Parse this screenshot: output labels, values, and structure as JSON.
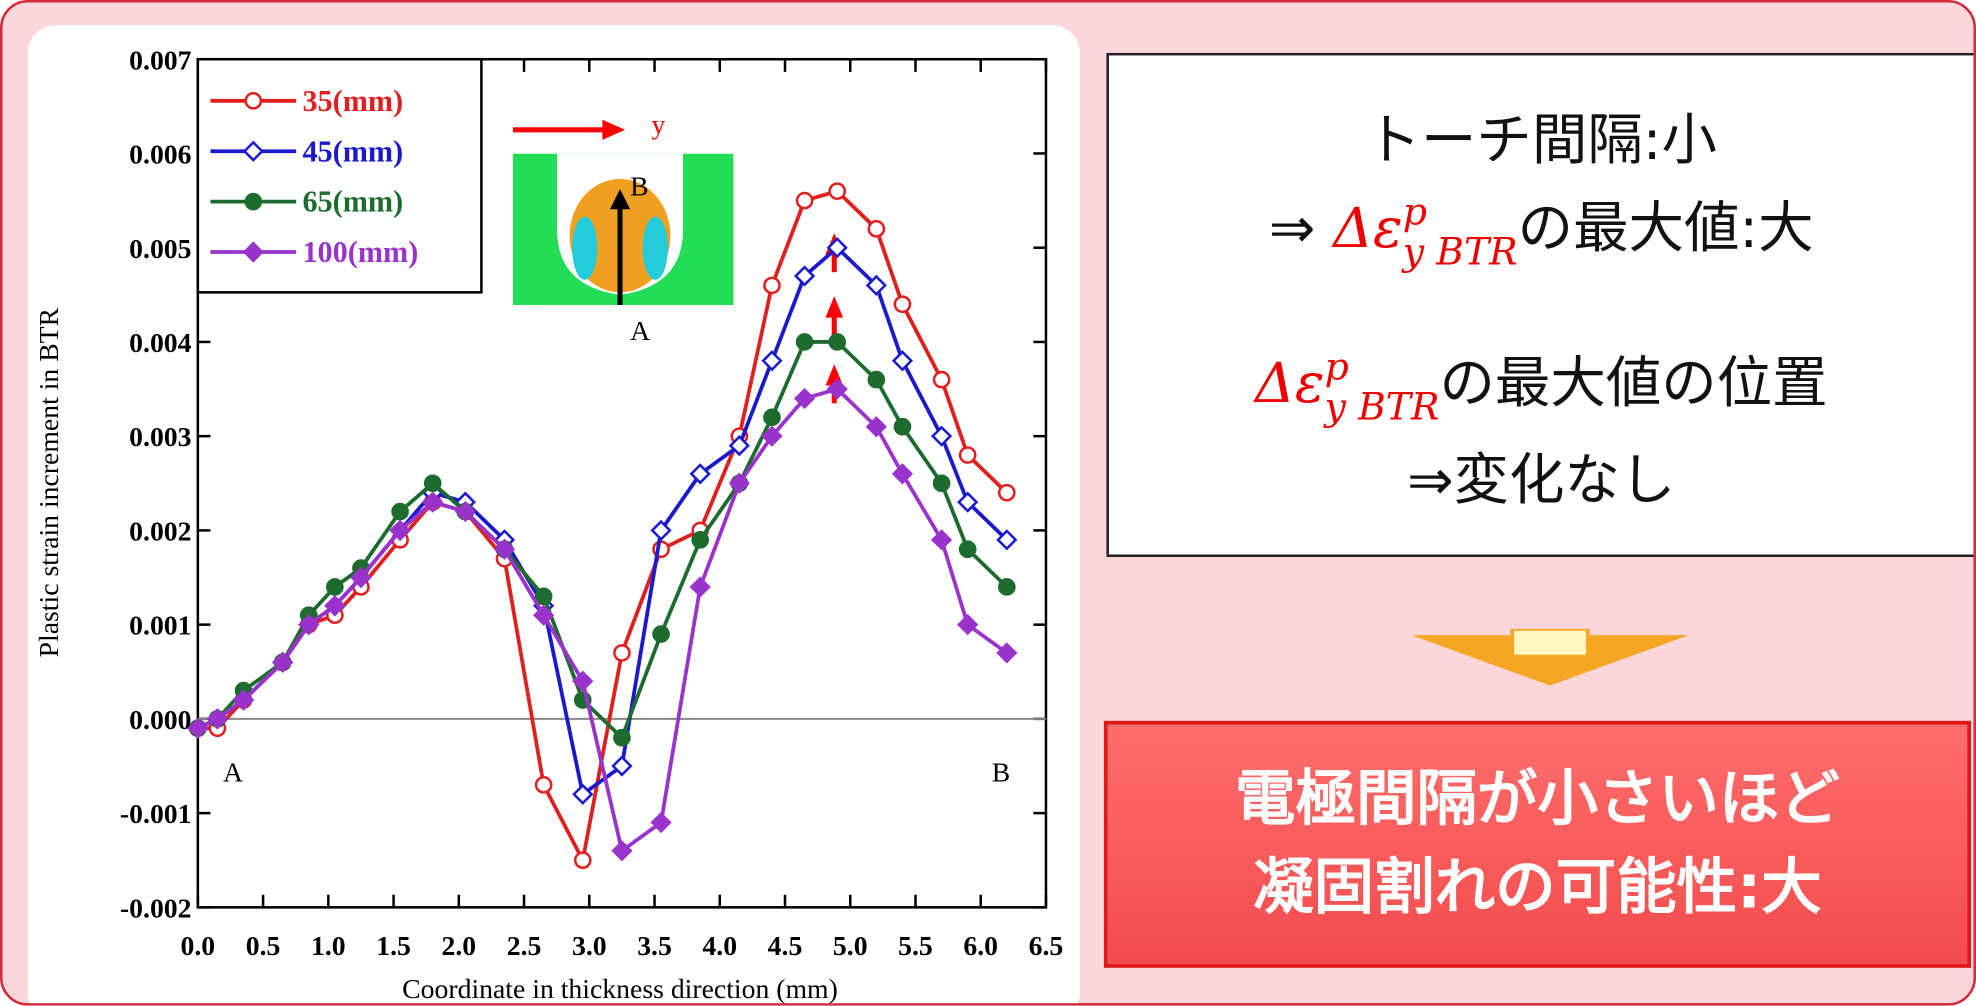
{
  "chart_data": {
    "type": "line",
    "x_label": "Coordinate in thickness direction (mm)",
    "y_label": "Plastic strain increment in BTR",
    "x": [
      0,
      0.15,
      0.35,
      0.65,
      0.85,
      1.05,
      1.25,
      1.55,
      1.8,
      2.05,
      2.35,
      2.65,
      2.95,
      3.25,
      3.55,
      3.85,
      4.15,
      4.4,
      4.65,
      4.9,
      5.2,
      5.4,
      5.7,
      5.9,
      6.2
    ],
    "series": [
      {
        "name": "35(mm)",
        "color": "#e02020",
        "marker": "circle",
        "filled": false,
        "values": [
          -0.0001,
          -0.0001,
          0.0002,
          0.0006,
          0.001,
          0.0011,
          0.0014,
          0.0019,
          0.0023,
          0.0022,
          0.0017,
          -0.0007,
          -0.0015,
          0.0007,
          0.0018,
          0.002,
          0.003,
          0.0046,
          0.0055,
          0.0056,
          0.0052,
          0.0044,
          0.0036,
          0.0028,
          0.0024
        ]
      },
      {
        "name": "45(mm)",
        "color": "#1a1acc",
        "marker": "diamond",
        "filled": false,
        "values": [
          -0.0001,
          0,
          0.0002,
          0.0006,
          0.001,
          0.0012,
          0.0015,
          0.002,
          0.0024,
          0.0023,
          0.0019,
          0.0012,
          -0.0008,
          -0.0005,
          0.002,
          0.0026,
          0.0029,
          0.0038,
          0.0047,
          0.005,
          0.0046,
          0.0038,
          0.003,
          0.0023,
          0.0019
        ]
      },
      {
        "name": "65(mm)",
        "color": "#1e6b30",
        "marker": "circle",
        "filled": true,
        "values": [
          -0.0001,
          0,
          0.0003,
          0.0006,
          0.0011,
          0.0014,
          0.0016,
          0.0022,
          0.0025,
          0.0022,
          0.0018,
          0.0013,
          0.0002,
          -0.0002,
          0.0009,
          0.0019,
          0.0025,
          0.0032,
          0.004,
          0.004,
          0.0036,
          0.0031,
          0.0025,
          0.0018,
          0.0014
        ]
      },
      {
        "name": "100(mm)",
        "color": "#9933cc",
        "marker": "diamond",
        "filled": true,
        "values": [
          -0.0001,
          0,
          0.0002,
          0.0006,
          0.001,
          0.0012,
          0.0015,
          0.002,
          0.0023,
          0.0022,
          0.0018,
          0.0011,
          0.0004,
          -0.0014,
          -0.0011,
          0.0014,
          0.0025,
          0.003,
          0.0034,
          0.0035,
          0.0031,
          0.0026,
          0.0019,
          0.001,
          0.0007
        ]
      }
    ],
    "xlim": [
      0,
      6.5
    ],
    "xticks": [
      {
        "value": 0,
        "label": "0.0"
      },
      0.5,
      {
        "value": 1,
        "label": "1.0"
      },
      1.5,
      {
        "value": 2,
        "label": "2.0"
      },
      2.5,
      {
        "value": 3,
        "label": "3.0"
      },
      3.5,
      {
        "value": 4,
        "label": "4.0"
      },
      4.5,
      {
        "value": 5,
        "label": "5.0"
      },
      5.5,
      {
        "value": 6,
        "label": "6.0"
      },
      6.5
    ],
    "ylim": [
      -0.002,
      0.007
    ],
    "yticks": [
      -0.002,
      -0.001,
      {
        "value": 0,
        "label": "0.000"
      },
      0.001,
      0.002,
      0.003,
      0.004,
      0.005,
      0.006,
      0.007
    ],
    "legend": "upper left",
    "point_labels": {
      "start": "A",
      "end": "B"
    },
    "inset_labels": {
      "axis": "y",
      "top": "B",
      "bottom": "A"
    }
  },
  "panel": {
    "line1": "トーチ間隔:小",
    "line2": {
      "prefix": "⇒ ",
      "symbol": "Δε",
      "sup": "p",
      "sub": "y BTR",
      "suffix": "の最大値:大"
    },
    "line3": {
      "symbol": "Δε",
      "sup": "p",
      "sub": "y BTR",
      "suffix": "の最大値の位置"
    },
    "line4": "⇒変化なし"
  },
  "conclusion": [
    "電極間隔が小さいほど",
    "凝固割れの可能性:大"
  ]
}
